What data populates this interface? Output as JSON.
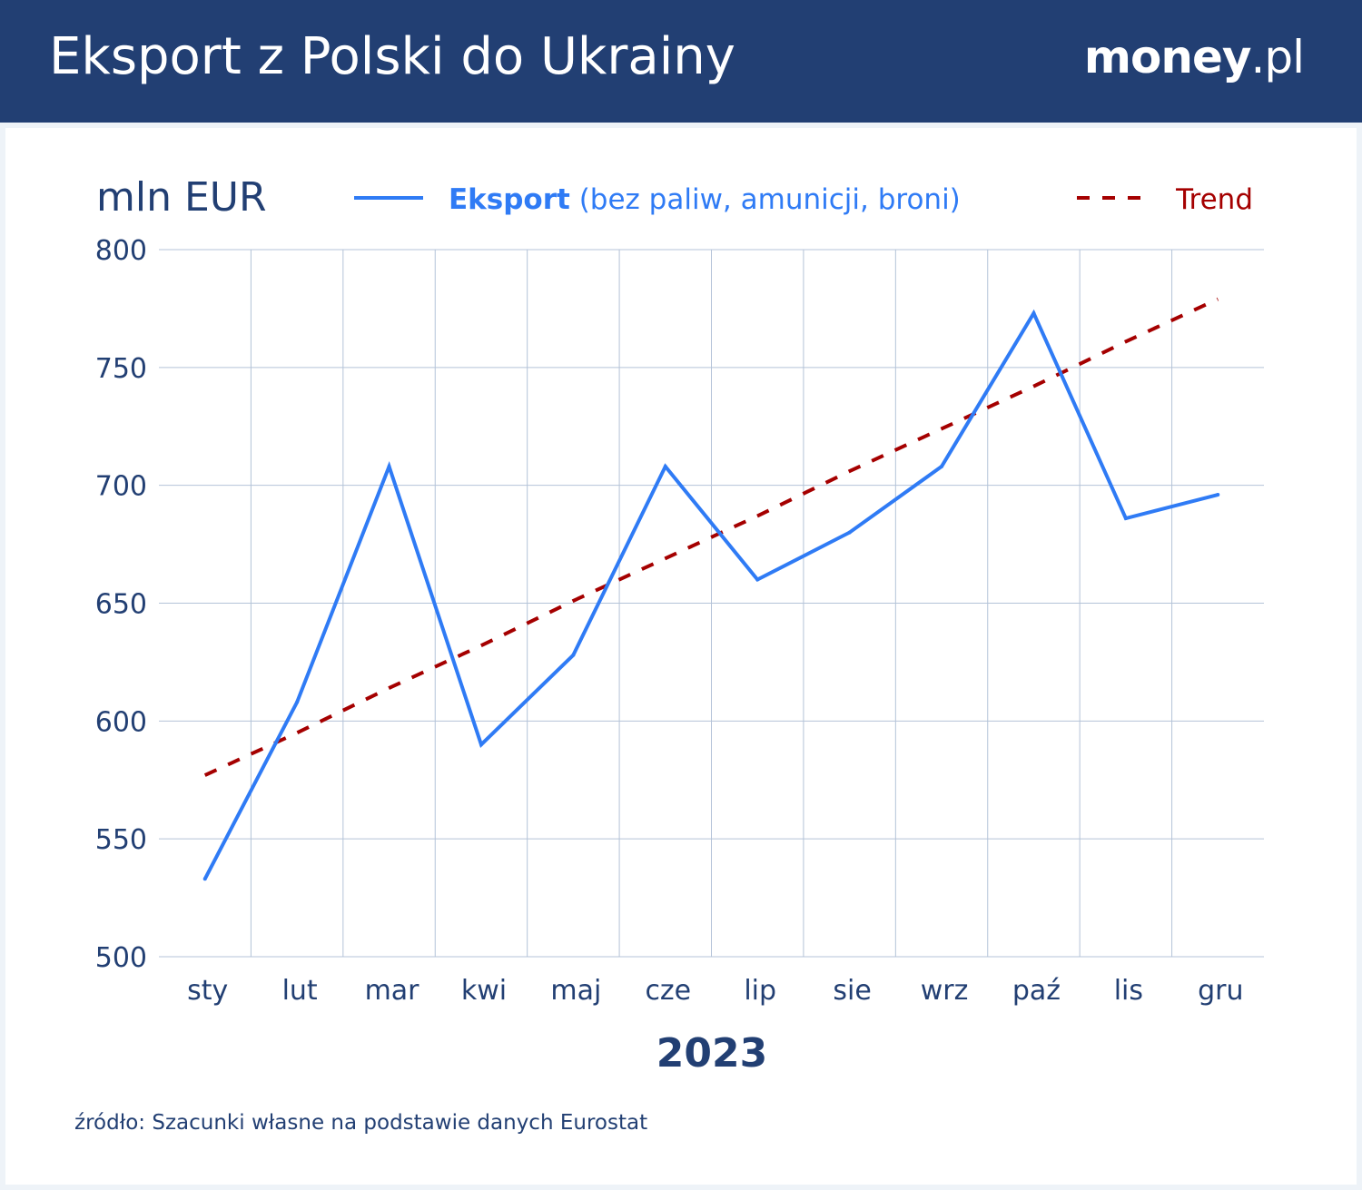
{
  "header": {
    "title": "Eksport z Polski do Ukrainy",
    "logo_main": "money",
    "logo_suffix": ".pl"
  },
  "source": "źródło: Szacunki własne na podstawie danych Eurostat",
  "colors": {
    "header": "#223f73",
    "export": "#2f7bf5",
    "trend": "#a50000",
    "text": "#223f73",
    "grid": "#b4c3d8"
  },
  "chart_data": {
    "type": "line",
    "ylabel": "mln EUR",
    "xlabel": "2023",
    "ylim": [
      500,
      800
    ],
    "yticks": [
      500,
      550,
      600,
      650,
      700,
      750,
      800
    ],
    "categories": [
      "sty",
      "lut",
      "mar",
      "kwi",
      "maj",
      "cze",
      "lip",
      "sie",
      "wrz",
      "paź",
      "lis",
      "gru"
    ],
    "grid": true,
    "legend_placement": "top",
    "series": [
      {
        "name": "Eksport",
        "name_suffix": "(bez paliw, amunicji, broni)",
        "style": "solid",
        "values": [
          533,
          608,
          708,
          590,
          628,
          708,
          660,
          680,
          708,
          773,
          686,
          696
        ]
      },
      {
        "name": "Trend",
        "style": "dashed",
        "values": [
          577,
          595,
          614,
          632,
          651,
          669,
          687,
          706,
          724,
          742,
          761,
          779
        ]
      }
    ]
  }
}
